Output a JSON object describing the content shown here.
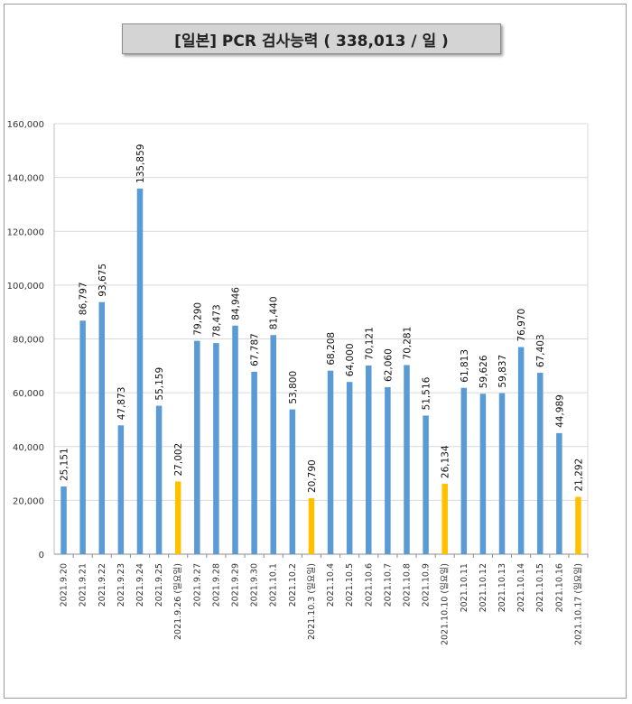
{
  "chart_data": {
    "type": "bar",
    "title": "[일본] PCR 검사능력 ( 338,013 / 일 )",
    "xlabel": "",
    "ylabel": "",
    "ylim": [
      0,
      160000
    ],
    "yticks": [
      "0",
      "20,000",
      "40,000",
      "60,000",
      "80,000",
      "100,000",
      "120,000",
      "140,000",
      "160,000"
    ],
    "grid": true,
    "colors": {
      "weekday": "#5b9bd5",
      "sunday": "#ffc000",
      "grid": "#d9d9d9"
    },
    "categories": [
      "2021.9.20",
      "2021.9.21",
      "2021.9.22",
      "2021.9.23",
      "2021.9.24",
      "2021.9.25",
      "2021.9.26 (일요일)",
      "2021.9.27",
      "2021.9.28",
      "2021.9.29",
      "2021.9.30",
      "2021.10.1",
      "2021.10.2",
      "2021.10.3 (일요일)",
      "2021.10.4",
      "2021.10.5",
      "2021.10.6",
      "2021.10.7",
      "2021.10.8",
      "2021.10.9",
      "2021.10.10 (일요일)",
      "2021.10.11",
      "2021.10.12",
      "2021.10.13",
      "2021.10.14",
      "2021.10.15",
      "2021.10.16",
      "2021.10.17 (일요일)"
    ],
    "values": [
      25151,
      86797,
      93675,
      47873,
      135859,
      55159,
      27002,
      79290,
      78473,
      84946,
      67787,
      81440,
      53800,
      20790,
      68208,
      64000,
      70121,
      62060,
      70281,
      51516,
      26134,
      61813,
      59626,
      59837,
      76970,
      67403,
      44989,
      21292
    ],
    "value_labels": [
      "25,151",
      "86,797",
      "93,675",
      "47,873",
      "135,859",
      "55,159",
      "27,002",
      "79,290",
      "78,473",
      "84,946",
      "67,787",
      "81,440",
      "53,800",
      "20,790",
      "68,208",
      "64,000",
      "70,121",
      "62,060",
      "70,281",
      "51,516",
      "26,134",
      "61,813",
      "59,626",
      "59,837",
      "76,970",
      "67,403",
      "44,989",
      "21,292"
    ],
    "highlight": [
      false,
      false,
      false,
      false,
      false,
      false,
      true,
      false,
      false,
      false,
      false,
      false,
      false,
      true,
      false,
      false,
      false,
      false,
      false,
      false,
      true,
      false,
      false,
      false,
      false,
      false,
      false,
      true
    ]
  }
}
